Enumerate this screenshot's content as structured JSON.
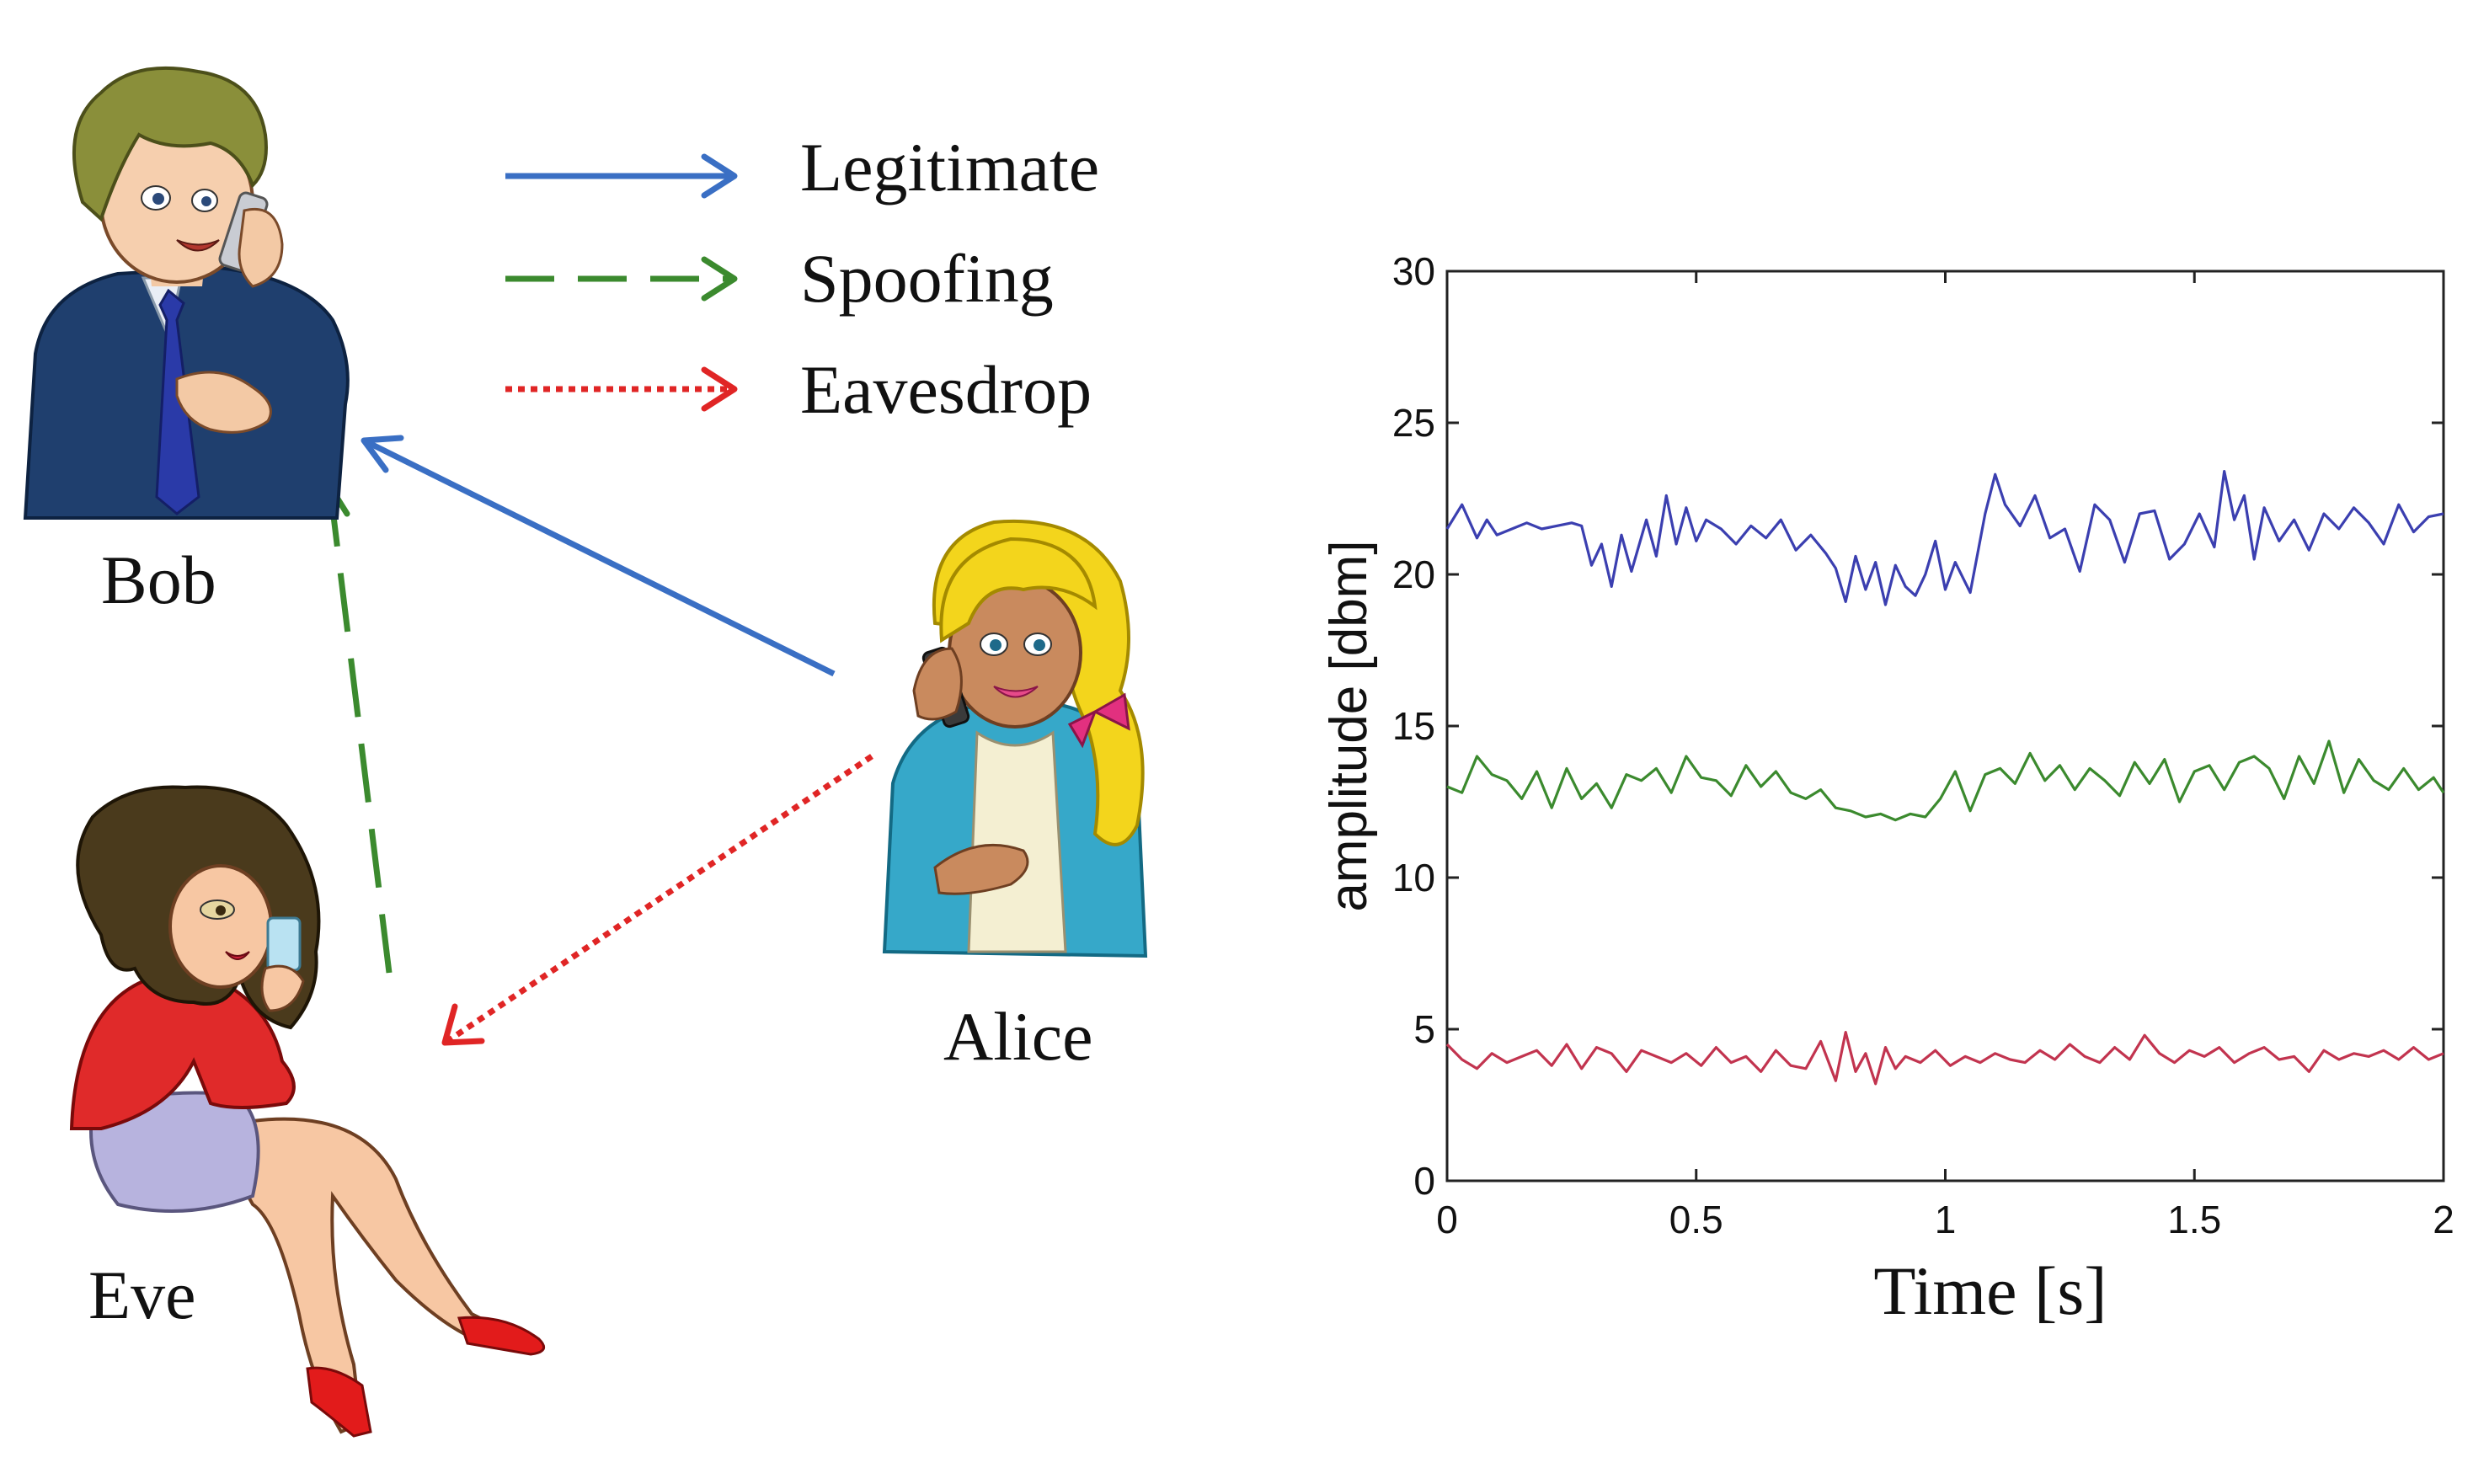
{
  "legend": {
    "items": [
      {
        "label": "Legitimate",
        "style": "solid",
        "color": "#3a6fc4"
      },
      {
        "label": "Spoofing",
        "style": "dashed",
        "color": "#3b8a2e"
      },
      {
        "label": "Eavesdrop",
        "style": "dotted",
        "color": "#e02525"
      }
    ]
  },
  "people": {
    "bob": {
      "label": "Bob"
    },
    "alice": {
      "label": "Alice"
    },
    "eve": {
      "label": "Eve"
    }
  },
  "colors": {
    "legitimate": "#3a6fc4",
    "spoofing": "#3b8a2e",
    "eavesdrop": "#e02525",
    "series_blue": "#3b3fb0",
    "series_green": "#3b8a2e",
    "series_red": "#c2344f"
  },
  "chart_data": {
    "type": "line",
    "title": "",
    "xlabel": "Time [s]",
    "ylabel": "amplitude [dbm]",
    "xlim": [
      0,
      2
    ],
    "ylim": [
      0,
      30
    ],
    "xticks": [
      "0",
      "0.5",
      "1",
      "1.5",
      "2"
    ],
    "yticks": [
      "0",
      "5",
      "10",
      "15",
      "20",
      "25",
      "30"
    ],
    "grid": false,
    "series": [
      {
        "color": "#3b3fb0",
        "x": [
          0,
          0.03,
          0.06,
          0.08,
          0.1,
          0.13,
          0.16,
          0.19,
          0.22,
          0.25,
          0.27,
          0.29,
          0.31,
          0.33,
          0.35,
          0.37,
          0.4,
          0.42,
          0.44,
          0.46,
          0.48,
          0.5,
          0.52,
          0.55,
          0.58,
          0.61,
          0.64,
          0.67,
          0.7,
          0.73,
          0.76,
          0.78,
          0.8,
          0.82,
          0.84,
          0.86,
          0.88,
          0.9,
          0.92,
          0.94,
          0.96,
          0.98,
          1.0,
          1.02,
          1.05,
          1.08,
          1.1,
          1.12,
          1.15,
          1.18,
          1.21,
          1.24,
          1.27,
          1.3,
          1.33,
          1.36,
          1.39,
          1.42,
          1.45,
          1.48,
          1.51,
          1.54,
          1.56,
          1.58,
          1.6,
          1.62,
          1.64,
          1.67,
          1.7,
          1.73,
          1.76,
          1.79,
          1.82,
          1.85,
          1.88,
          1.91,
          1.94,
          1.97,
          2.0
        ],
        "values": [
          21.5,
          22.3,
          21.2,
          21.8,
          21.3,
          21.5,
          21.7,
          21.5,
          21.6,
          21.7,
          21.6,
          20.3,
          21.0,
          19.6,
          21.3,
          20.1,
          21.8,
          20.6,
          22.6,
          21.0,
          22.2,
          21.1,
          21.8,
          21.5,
          21.0,
          21.6,
          21.2,
          21.8,
          20.8,
          21.3,
          20.7,
          20.2,
          19.1,
          20.6,
          19.5,
          20.4,
          19.0,
          20.3,
          19.6,
          19.3,
          20.0,
          21.1,
          19.5,
          20.4,
          19.4,
          22.0,
          23.3,
          22.3,
          21.6,
          22.6,
          21.2,
          21.5,
          20.1,
          22.3,
          21.8,
          20.4,
          22.0,
          22.1,
          20.5,
          21.0,
          22.0,
          20.9,
          23.4,
          21.8,
          22.6,
          20.5,
          22.2,
          21.1,
          21.8,
          20.8,
          22.0,
          21.5,
          22.2,
          21.7,
          21.0,
          22.3,
          21.4,
          21.9,
          22.0
        ]
      },
      {
        "color": "#3b8a2e",
        "x": [
          0,
          0.03,
          0.06,
          0.09,
          0.12,
          0.15,
          0.18,
          0.21,
          0.24,
          0.27,
          0.3,
          0.33,
          0.36,
          0.39,
          0.42,
          0.45,
          0.48,
          0.51,
          0.54,
          0.57,
          0.6,
          0.63,
          0.66,
          0.69,
          0.72,
          0.75,
          0.78,
          0.81,
          0.84,
          0.87,
          0.9,
          0.93,
          0.96,
          0.99,
          1.02,
          1.05,
          1.08,
          1.11,
          1.14,
          1.17,
          1.2,
          1.23,
          1.26,
          1.29,
          1.32,
          1.35,
          1.38,
          1.41,
          1.44,
          1.47,
          1.5,
          1.53,
          1.56,
          1.59,
          1.62,
          1.65,
          1.68,
          1.71,
          1.74,
          1.77,
          1.8,
          1.83,
          1.86,
          1.89,
          1.92,
          1.95,
          1.98,
          2.0
        ],
        "values": [
          13.0,
          12.8,
          14.0,
          13.4,
          13.2,
          12.6,
          13.5,
          12.3,
          13.6,
          12.6,
          13.1,
          12.3,
          13.4,
          13.2,
          13.6,
          12.8,
          14.0,
          13.3,
          13.2,
          12.7,
          13.7,
          13.0,
          13.5,
          12.8,
          12.6,
          12.9,
          12.3,
          12.2,
          12.0,
          12.1,
          11.9,
          12.1,
          12.0,
          12.6,
          13.5,
          12.2,
          13.4,
          13.6,
          13.1,
          14.1,
          13.2,
          13.7,
          12.9,
          13.6,
          13.2,
          12.7,
          13.8,
          13.1,
          13.9,
          12.5,
          13.5,
          13.7,
          12.9,
          13.8,
          14.0,
          13.6,
          12.6,
          14.0,
          13.1,
          14.5,
          12.8,
          13.9,
          13.2,
          12.9,
          13.6,
          12.9,
          13.3,
          12.8
        ]
      },
      {
        "color": "#c2344f",
        "x": [
          0,
          0.03,
          0.06,
          0.09,
          0.12,
          0.15,
          0.18,
          0.21,
          0.24,
          0.27,
          0.3,
          0.33,
          0.36,
          0.39,
          0.42,
          0.45,
          0.48,
          0.51,
          0.54,
          0.57,
          0.6,
          0.63,
          0.66,
          0.69,
          0.72,
          0.75,
          0.78,
          0.8,
          0.82,
          0.84,
          0.86,
          0.88,
          0.9,
          0.92,
          0.95,
          0.98,
          1.01,
          1.04,
          1.07,
          1.1,
          1.13,
          1.16,
          1.19,
          1.22,
          1.25,
          1.28,
          1.31,
          1.34,
          1.37,
          1.4,
          1.43,
          1.46,
          1.49,
          1.52,
          1.55,
          1.58,
          1.61,
          1.64,
          1.67,
          1.7,
          1.73,
          1.76,
          1.79,
          1.82,
          1.85,
          1.88,
          1.91,
          1.94,
          1.97,
          2.0
        ],
        "values": [
          4.5,
          4.0,
          3.7,
          4.2,
          3.9,
          4.1,
          4.3,
          3.8,
          4.5,
          3.7,
          4.4,
          4.2,
          3.6,
          4.3,
          4.1,
          3.9,
          4.2,
          3.8,
          4.4,
          3.9,
          4.1,
          3.6,
          4.3,
          3.8,
          3.7,
          4.6,
          3.3,
          4.9,
          3.6,
          4.2,
          3.2,
          4.4,
          3.7,
          4.1,
          3.9,
          4.3,
          3.8,
          4.1,
          3.9,
          4.2,
          4.0,
          3.9,
          4.3,
          4.0,
          4.5,
          4.1,
          3.9,
          4.4,
          4.0,
          4.8,
          4.2,
          3.9,
          4.3,
          4.1,
          4.4,
          3.9,
          4.2,
          4.4,
          4.0,
          4.1,
          3.6,
          4.3,
          4.0,
          4.2,
          4.1,
          4.3,
          4.0,
          4.4,
          4.0,
          4.2
        ]
      }
    ]
  }
}
